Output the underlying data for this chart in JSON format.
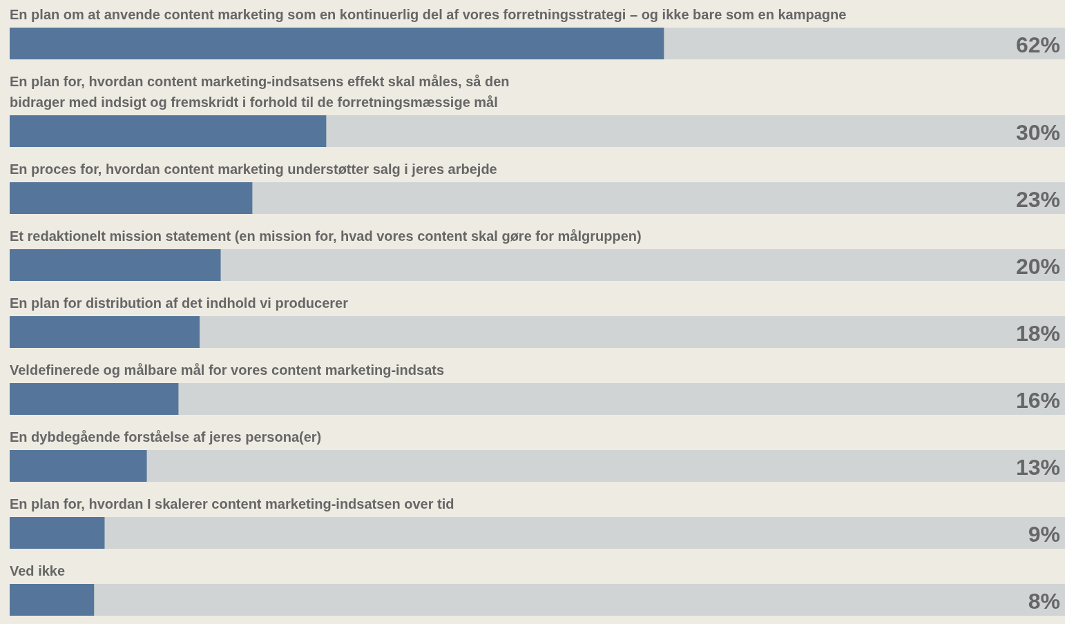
{
  "chart_data": {
    "type": "bar",
    "orientation": "horizontal",
    "categories": [
      "En plan om at anvende content marketing som en kontinuerlig del af vores forretningsstrategi – og ikke bare som en kampagne",
      "En plan for, hvordan content marketing-indsatsens effekt skal måles, så den\nbidrager med indsigt og fremskridt i forhold til de forretningsmæssige mål",
      "En proces for, hvordan content marketing understøtter salg i jeres arbejde",
      "Et redaktionelt mission statement (en mission for, hvad vores content skal gøre for målgruppen)",
      "En plan for distribution af det indhold vi producerer",
      "Veldefinerede og målbare mål for vores content marketing-indsats",
      "En dybdegående forståelse af jeres persona(er)",
      "En plan for, hvordan I skalerer content marketing-indsatsen over tid",
      "Ved ikke"
    ],
    "values": [
      62,
      30,
      23,
      20,
      18,
      16,
      13,
      9,
      8
    ],
    "value_labels": [
      "62%",
      "30%",
      "23%",
      "20%",
      "18%",
      "16%",
      "13%",
      "9%",
      "8%"
    ],
    "color": "#55769a",
    "xlim": [
      0,
      100
    ],
    "tick_labels": false
  }
}
